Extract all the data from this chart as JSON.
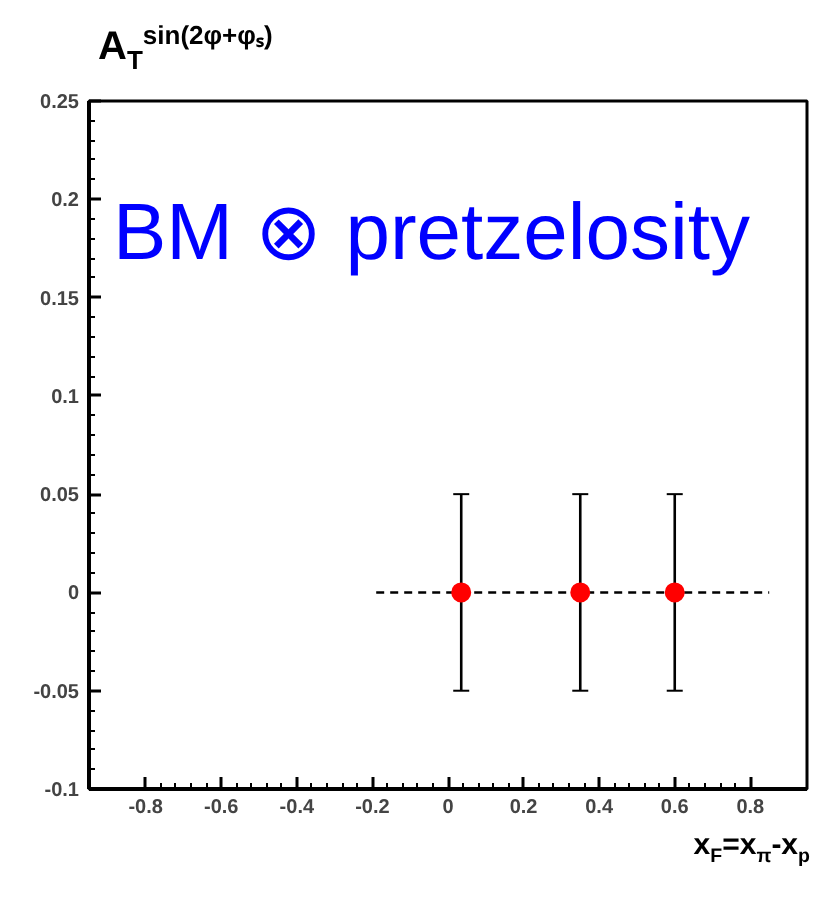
{
  "chart_data": {
    "type": "scatter",
    "title": "A$_{T}$$^{sin(2φ+φₛ)}$",
    "xlabel": "x$_{F}$=x$_{π}$-x$_{p}$",
    "annotations": [
      "BM ⊗ pretzelosity"
    ],
    "xlim": [
      -0.95,
      0.95
    ],
    "xticks": [
      -0.8,
      -0.6,
      -0.4,
      -0.2,
      0,
      0.2,
      0.4,
      0.6,
      0.8
    ],
    "ylim": [
      -0.1,
      0.25
    ],
    "yticks": [
      -0.1,
      -0.05,
      0,
      0.05,
      0.1,
      0.15,
      0.2,
      0.25
    ],
    "grid": false,
    "marker": "circle",
    "series": [
      {
        "type": "line",
        "color": "#000000",
        "line_style": "dashed",
        "marker": "none",
        "x": [
          -0.19,
          0.85
        ],
        "values": [
          0,
          0
        ]
      },
      {
        "color": "#ff0000",
        "x": [
          0.035,
          0.35,
          0.6
        ],
        "values": [
          0,
          0,
          0
        ],
        "errors": [
          0.05,
          0.05,
          0.05
        ]
      }
    ]
  }
}
